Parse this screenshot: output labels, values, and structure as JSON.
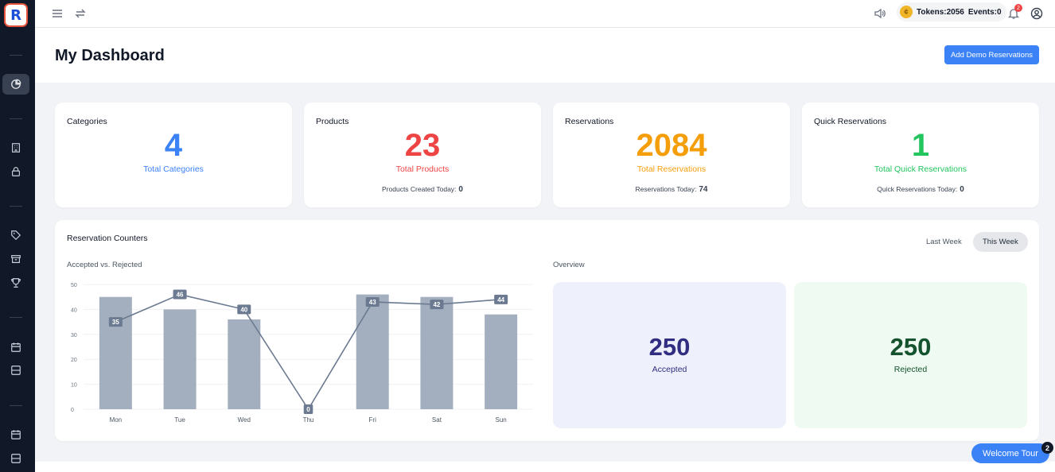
{
  "app": {
    "logo_letter": "R"
  },
  "topbar": {
    "tokens_label": "Tokens:2056",
    "events_label": "Events:0",
    "notification_count": "2"
  },
  "header": {
    "title": "My Dashboard",
    "add_demo_label": "Add Demo Reservations"
  },
  "stats": [
    {
      "title": "Categories",
      "value": "4",
      "subtitle": "Total Categories",
      "footer_label": "",
      "footer_value": "",
      "color": "#3b82f6"
    },
    {
      "title": "Products",
      "value": "23",
      "subtitle": "Total Products",
      "footer_label": "Products Created Today:",
      "footer_value": "0",
      "color": "#ef4444"
    },
    {
      "title": "Reservations",
      "value": "2084",
      "subtitle": "Total Reservations",
      "footer_label": "Reservations Today:",
      "footer_value": "74",
      "color": "#f59e0b"
    },
    {
      "title": "Quick Reservations",
      "value": "1",
      "subtitle": "Total Quick Reservations",
      "footer_label": "Quick Reservations Today:",
      "footer_value": "0",
      "color": "#22c55e"
    }
  ],
  "counters": {
    "title": "Reservation Counters",
    "periods": [
      "Last Week",
      "This Week"
    ],
    "active_period": "This Week",
    "chart_label": "Accepted vs. Rejected",
    "overview_label": "Overview",
    "overview": {
      "accepted_value": "250",
      "accepted_label": "Accepted",
      "rejected_value": "250",
      "rejected_label": "Rejected"
    }
  },
  "chart_data": {
    "type": "bar",
    "categories": [
      "Mon",
      "Tue",
      "Wed",
      "Thu",
      "Fri",
      "Sat",
      "Sun"
    ],
    "series": [
      {
        "type": "bar",
        "values": [
          45,
          40,
          36,
          0,
          46,
          45,
          38
        ],
        "color": "#a3afbf"
      },
      {
        "type": "line",
        "values": [
          35,
          46,
          40,
          0,
          43,
          42,
          44
        ],
        "color": "#6b7a90"
      }
    ],
    "ylim": [
      0,
      50
    ],
    "yticks": [
      0,
      10,
      20,
      30,
      40,
      50
    ],
    "grid": true
  },
  "tour": {
    "label": "Welcome Tour",
    "badge": "2"
  }
}
